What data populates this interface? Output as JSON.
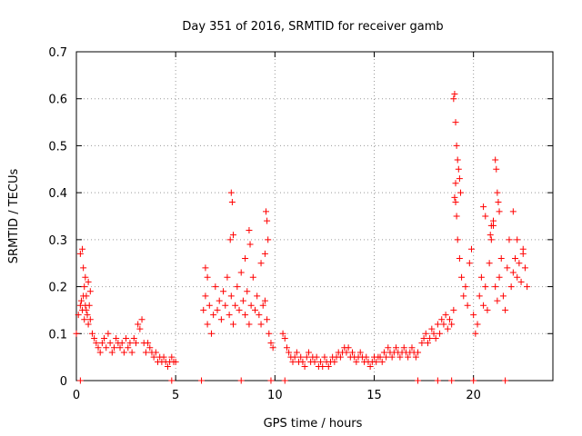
{
  "chart_data": {
    "type": "scatter",
    "title": "Day 351 of 2016, SRMTID for receiver gamb",
    "xlabel": "GPS time / hours",
    "ylabel": "SRMTID / TECUs",
    "xlim": [
      0,
      24
    ],
    "ylim": [
      0,
      0.7
    ],
    "xticks": [
      0,
      5,
      10,
      15,
      20
    ],
    "yticks": [
      0,
      0.1,
      0.2,
      0.3,
      0.4,
      0.5,
      0.6,
      0.7
    ],
    "xtick_labels": [
      "0",
      "5",
      "10",
      "15",
      "20"
    ],
    "ytick_labels": [
      "0",
      "0.1",
      "0.2",
      "0.3",
      "0.4",
      "0.5",
      "0.6",
      "0.7"
    ],
    "grid": true,
    "marker": "+",
    "marker_color": "#ff0000",
    "series": [
      {
        "name": "SRMTID",
        "x": [
          0.0,
          0.1,
          0.2,
          0.25,
          0.3,
          0.35,
          0.4,
          0.45,
          0.5,
          0.55,
          0.6,
          0.65,
          0.7,
          0.8,
          0.9,
          1.0,
          1.1,
          1.2,
          1.3,
          1.4,
          1.5,
          1.6,
          1.7,
          1.8,
          1.9,
          2.0,
          2.1,
          2.2,
          2.3,
          2.4,
          2.5,
          2.6,
          2.7,
          2.8,
          2.9,
          3.0,
          3.1,
          3.2,
          3.3,
          3.4,
          3.5,
          3.6,
          3.7,
          3.8,
          3.9,
          4.0,
          4.1,
          4.2,
          4.3,
          4.4,
          4.5,
          4.6,
          4.7,
          4.8,
          4.9,
          5.0,
          0.2,
          0.3,
          0.35,
          0.4,
          0.45,
          0.5,
          0.6,
          0.7,
          6.4,
          6.5,
          6.6,
          6.7,
          6.8,
          6.9,
          7.0,
          7.1,
          7.2,
          7.3,
          7.4,
          7.5,
          7.6,
          7.7,
          7.8,
          7.9,
          8.0,
          8.1,
          8.2,
          8.3,
          8.4,
          8.5,
          8.6,
          8.7,
          8.8,
          8.9,
          9.0,
          9.1,
          9.2,
          9.3,
          9.4,
          9.5,
          9.6,
          9.7,
          9.8,
          9.9,
          7.8,
          7.85,
          7.9,
          7.75,
          8.7,
          8.75,
          9.55,
          9.6,
          9.65,
          9.5,
          6.5,
          6.6,
          8.5,
          9.3,
          10.4,
          10.5,
          10.6,
          10.7,
          10.8,
          10.9,
          11.0,
          11.1,
          11.2,
          11.3,
          11.4,
          11.5,
          11.6,
          11.7,
          11.8,
          11.9,
          12.0,
          12.1,
          12.2,
          12.3,
          12.4,
          12.5,
          12.6,
          12.7,
          12.8,
          12.9,
          13.0,
          13.1,
          13.2,
          13.3,
          13.4,
          13.5,
          13.6,
          13.7,
          13.8,
          13.9,
          14.0,
          14.1,
          14.2,
          14.3,
          14.4,
          14.5,
          14.6,
          14.7,
          14.8,
          14.9,
          15.0,
          15.1,
          15.2,
          15.3,
          15.4,
          15.5,
          15.6,
          15.7,
          15.8,
          15.9,
          16.0,
          16.1,
          16.2,
          16.3,
          16.4,
          16.5,
          16.6,
          16.7,
          16.8,
          16.9,
          17.0,
          17.1,
          17.2,
          17.4,
          17.5,
          17.6,
          17.7,
          17.8,
          17.9,
          18.0,
          18.1,
          18.2,
          18.3,
          18.4,
          18.5,
          18.6,
          18.7,
          18.8,
          18.9,
          19.0,
          19.0,
          19.05,
          19.1,
          19.15,
          19.2,
          19.25,
          19.3,
          19.35,
          19.05,
          19.1,
          19.1,
          19.15,
          19.2,
          19.3,
          19.4,
          19.5,
          19.6,
          19.7,
          19.8,
          19.9,
          20.0,
          20.1,
          20.2,
          20.3,
          20.4,
          20.5,
          20.6,
          20.7,
          20.8,
          20.9,
          21.0,
          21.1,
          21.2,
          21.3,
          21.4,
          21.5,
          21.6,
          21.7,
          21.8,
          21.9,
          22.0,
          22.1,
          22.2,
          22.3,
          22.4,
          22.5,
          22.6,
          22.7,
          21.1,
          21.15,
          21.2,
          21.25,
          21.3,
          20.9,
          20.85,
          21.0,
          20.5,
          20.6,
          22.0,
          22.2,
          22.5,
          0.2,
          4.8,
          6.3,
          8.3,
          9.8,
          10.5,
          17.2,
          18.2,
          18.9,
          20.0,
          21.6
        ],
        "y": [
          0.1,
          0.14,
          0.16,
          0.17,
          0.15,
          0.18,
          0.13,
          0.16,
          0.15,
          0.14,
          0.12,
          0.16,
          0.13,
          0.1,
          0.09,
          0.08,
          0.07,
          0.06,
          0.08,
          0.09,
          0.07,
          0.1,
          0.08,
          0.06,
          0.07,
          0.09,
          0.08,
          0.07,
          0.08,
          0.06,
          0.09,
          0.07,
          0.08,
          0.06,
          0.09,
          0.08,
          0.12,
          0.11,
          0.13,
          0.08,
          0.06,
          0.08,
          0.07,
          0.06,
          0.05,
          0.06,
          0.04,
          0.05,
          0.04,
          0.05,
          0.04,
          0.03,
          0.04,
          0.05,
          0.04,
          0.04,
          0.27,
          0.28,
          0.24,
          0.2,
          0.22,
          0.18,
          0.21,
          0.19,
          0.15,
          0.18,
          0.12,
          0.16,
          0.1,
          0.14,
          0.2,
          0.15,
          0.17,
          0.13,
          0.19,
          0.16,
          0.22,
          0.14,
          0.18,
          0.12,
          0.16,
          0.2,
          0.15,
          0.23,
          0.17,
          0.14,
          0.19,
          0.12,
          0.16,
          0.22,
          0.15,
          0.18,
          0.14,
          0.12,
          0.16,
          0.17,
          0.13,
          0.1,
          0.08,
          0.07,
          0.4,
          0.38,
          0.31,
          0.3,
          0.32,
          0.29,
          0.36,
          0.34,
          0.3,
          0.27,
          0.24,
          0.22,
          0.26,
          0.25,
          0.1,
          0.09,
          0.07,
          0.06,
          0.05,
          0.04,
          0.05,
          0.06,
          0.04,
          0.05,
          0.04,
          0.03,
          0.05,
          0.06,
          0.04,
          0.05,
          0.04,
          0.05,
          0.03,
          0.04,
          0.03,
          0.05,
          0.04,
          0.03,
          0.04,
          0.05,
          0.04,
          0.05,
          0.06,
          0.05,
          0.06,
          0.07,
          0.06,
          0.07,
          0.05,
          0.06,
          0.05,
          0.04,
          0.05,
          0.06,
          0.05,
          0.04,
          0.05,
          0.04,
          0.03,
          0.04,
          0.05,
          0.04,
          0.05,
          0.05,
          0.04,
          0.06,
          0.05,
          0.07,
          0.06,
          0.05,
          0.06,
          0.07,
          0.06,
          0.05,
          0.06,
          0.07,
          0.06,
          0.05,
          0.06,
          0.07,
          0.06,
          0.05,
          0.06,
          0.08,
          0.09,
          0.1,
          0.08,
          0.09,
          0.11,
          0.1,
          0.09,
          0.12,
          0.1,
          0.13,
          0.12,
          0.14,
          0.11,
          0.13,
          0.12,
          0.15,
          0.6,
          0.61,
          0.55,
          0.5,
          0.47,
          0.45,
          0.43,
          0.4,
          0.39,
          0.42,
          0.38,
          0.35,
          0.3,
          0.26,
          0.22,
          0.18,
          0.2,
          0.16,
          0.25,
          0.28,
          0.14,
          0.1,
          0.12,
          0.18,
          0.22,
          0.16,
          0.2,
          0.15,
          0.25,
          0.3,
          0.33,
          0.2,
          0.17,
          0.22,
          0.26,
          0.18,
          0.15,
          0.24,
          0.3,
          0.2,
          0.23,
          0.26,
          0.22,
          0.25,
          0.21,
          0.27,
          0.24,
          0.2,
          0.47,
          0.45,
          0.4,
          0.38,
          0.36,
          0.33,
          0.31,
          0.34,
          0.37,
          0.35,
          0.36,
          0.3,
          0.28,
          0.0,
          0.0,
          0.0,
          0.0,
          0.0,
          0.0,
          0.0,
          0.0,
          0.0,
          0.0,
          0.0
        ]
      }
    ]
  }
}
